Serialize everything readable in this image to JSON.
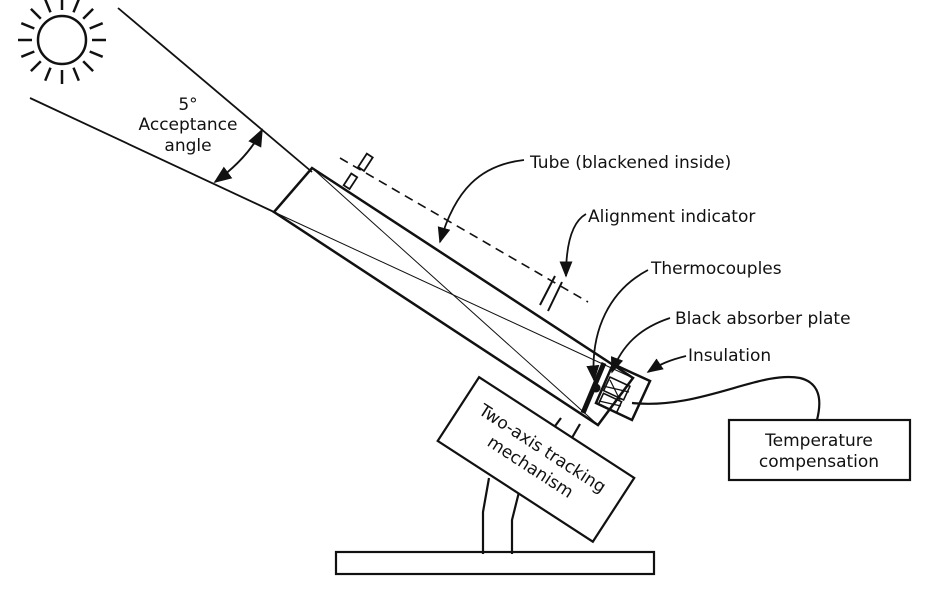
{
  "labels": {
    "angle_value": "5°",
    "angle_line1": "Acceptance",
    "angle_line2": "angle",
    "tube": "Tube (blackened inside)",
    "alignment": "Alignment indicator",
    "thermocouples": "Thermocouples",
    "absorber": "Black absorber plate",
    "insulation": "Insulation",
    "tracking_line1": "Two-axis tracking",
    "tracking_line2": "mechanism",
    "temp_line1": "Temperature",
    "temp_line2": "compensation"
  },
  "icons": {
    "sun": "sun-icon"
  },
  "colors": {
    "ink": "#111111",
    "background": "#ffffff"
  }
}
